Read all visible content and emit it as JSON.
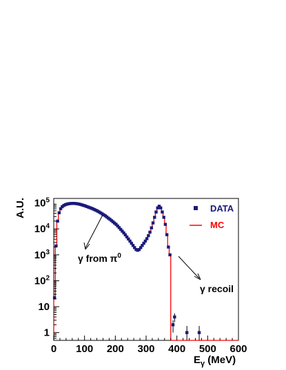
{
  "chart_data": {
    "type": "line",
    "xlabel_base": "E",
    "xlabel_sub": "γ",
    "xlabel_unit": " (MeV)",
    "ylabel": "A.U.",
    "xlim": [
      0,
      600
    ],
    "ylim": [
      0.5,
      150000
    ],
    "y_scale": "log",
    "x_ticks": [
      "0",
      "100",
      "200",
      "300",
      "400",
      "500",
      "600"
    ],
    "y_ticks": [
      {
        "base": "1",
        "exp": ""
      },
      {
        "base": "10",
        "exp": ""
      },
      {
        "base": "10",
        "exp": "2"
      },
      {
        "base": "10",
        "exp": "3"
      },
      {
        "base": "10",
        "exp": "4"
      },
      {
        "base": "10",
        "exp": "5"
      }
    ],
    "legend": {
      "position": "top-right",
      "items": [
        {
          "label": "DATA",
          "color": "#1a1a7a",
          "marker": "square"
        },
        {
          "label": "MC",
          "color": "#ff0000",
          "marker": "line"
        }
      ]
    },
    "annotations": [
      {
        "text_prefix": "γ from π",
        "sup": "0"
      },
      {
        "text": "γ recoil"
      }
    ],
    "series": [
      {
        "name": "DATA",
        "color": "#1a1a7a",
        "x": [
          2.5,
          7.5,
          12.5,
          17.5,
          22.5,
          27.5,
          32.5,
          37.5,
          42.5,
          47.5,
          52.5,
          57.5,
          62.5,
          67.5,
          72.5,
          77.5,
          82.5,
          87.5,
          92.5,
          97.5,
          102.5,
          107.5,
          112.5,
          117.5,
          122.5,
          127.5,
          132.5,
          137.5,
          142.5,
          147.5,
          152.5,
          157.5,
          162.5,
          167.5,
          172.5,
          177.5,
          182.5,
          187.5,
          192.5,
          197.5,
          202.5,
          207.5,
          212.5,
          217.5,
          222.5,
          227.5,
          232.5,
          237.5,
          242.5,
          247.5,
          252.5,
          257.5,
          262.5,
          267.5,
          272.5,
          277.5,
          282.5,
          287.5,
          292.5,
          297.5,
          302.5,
          307.5,
          312.5,
          317.5,
          322.5,
          327.5,
          332.5,
          337.5,
          342.5,
          347.5,
          352.5,
          357.5,
          362.5,
          367.5,
          372.5,
          377.5,
          382.5,
          387.5,
          392.5,
          397.5,
          402.5,
          407.5,
          432.5,
          472.5
        ],
        "y": [
          22,
          2200,
          20000,
          42000,
          60000,
          72000,
          80000,
          86000,
          90000,
          93000,
          95000,
          96000,
          96500,
          96000,
          95000,
          93000,
          90500,
          87500,
          84000,
          80500,
          77000,
          73000,
          69500,
          66000,
          62500,
          59000,
          55500,
          52000,
          48500,
          45000,
          41500,
          38000,
          35000,
          32000,
          29000,
          26000,
          23500,
          21000,
          18800,
          16800,
          15000,
          13000,
          11200,
          9600,
          8200,
          7000,
          5900,
          4900,
          4100,
          3400,
          2800,
          2300,
          1900,
          1600,
          1500,
          1600,
          1900,
          2300,
          2800,
          3400,
          4200,
          5500,
          7500,
          11000,
          17000,
          28000,
          45000,
          65000,
          75000,
          65000,
          45000,
          28000,
          15000,
          6000,
          2000,
          1000,
          0.5,
          2,
          4,
          0.5,
          0.5,
          0.5,
          1,
          1
        ],
        "err": [
          3,
          50,
          150,
          200,
          250,
          270,
          280,
          290,
          300,
          300,
          300,
          300,
          300,
          300,
          300,
          300,
          300,
          290,
          290,
          280,
          270,
          270,
          260,
          250,
          250,
          240,
          230,
          220,
          210,
          210,
          200,
          190,
          180,
          170,
          170,
          160,
          150,
          140,
          130,
          130,
          120,
          110,
          100,
          95,
          90,
          80,
          75,
          70,
          64,
          58,
          53,
          48,
          44,
          40,
          39,
          40,
          44,
          48,
          53,
          58,
          65,
          74,
          86,
          105,
          130,
          167,
          212,
          255,
          274,
          255,
          212,
          167,
          122,
          77,
          45,
          32,
          0,
          1,
          1.5,
          0,
          0,
          0,
          0.8,
          0.8
        ],
        "marker_indices": [
          0,
          1,
          2,
          3,
          4,
          5,
          6,
          7,
          8,
          9,
          10,
          11,
          12,
          13,
          14,
          15,
          16,
          17,
          18,
          19,
          20,
          21,
          22,
          23,
          24,
          25,
          26,
          27,
          28,
          29,
          30,
          31,
          32,
          33,
          34,
          35,
          36,
          37,
          38,
          39,
          40,
          41,
          42,
          43,
          44,
          45,
          46,
          47,
          48,
          49,
          50,
          51,
          52,
          53,
          54,
          55,
          56,
          57,
          58,
          59,
          60,
          61,
          62,
          63,
          64,
          65,
          66,
          67,
          68,
          69,
          70,
          71,
          72,
          73,
          74,
          75,
          77,
          78,
          82,
          83
        ]
      },
      {
        "name": "MC",
        "color": "#ff0000",
        "x": [
          0,
          5,
          10,
          15,
          20,
          25,
          30,
          35,
          40,
          45,
          50,
          55,
          60,
          65,
          70,
          75,
          80,
          85,
          90,
          95,
          100,
          105,
          110,
          115,
          120,
          125,
          130,
          135,
          140,
          145,
          150,
          155,
          160,
          165,
          170,
          175,
          180,
          185,
          190,
          195,
          200,
          205,
          210,
          215,
          220,
          225,
          230,
          235,
          240,
          245,
          250,
          255,
          260,
          265,
          270,
          275,
          280,
          285,
          290,
          295,
          300,
          305,
          310,
          315,
          320,
          325,
          330,
          335,
          340,
          345,
          350,
          355,
          360,
          365,
          370,
          375,
          380,
          385,
          390,
          395,
          400,
          405,
          410,
          415,
          420,
          425,
          430,
          435,
          440,
          600
        ],
        "y": [
          22,
          2200,
          20000,
          42000,
          60000,
          72000,
          80000,
          86000,
          90000,
          93000,
          95000,
          96000,
          96500,
          96000,
          95000,
          93000,
          90500,
          87500,
          84000,
          80500,
          77000,
          73000,
          69500,
          66000,
          62500,
          59000,
          55500,
          52000,
          48500,
          45000,
          41500,
          38000,
          35000,
          32000,
          29000,
          26000,
          23500,
          21000,
          18800,
          16800,
          15000,
          13000,
          11200,
          9600,
          8200,
          7000,
          5900,
          4900,
          4100,
          3400,
          2800,
          2300,
          1900,
          1600,
          1500,
          1600,
          1900,
          2300,
          2800,
          3400,
          4200,
          5500,
          7500,
          11000,
          17000,
          28000,
          45000,
          65000,
          75000,
          65000,
          45000,
          28000,
          15000,
          6000,
          2000,
          1000,
          0.5,
          0.5,
          0.5,
          0.5,
          0.5,
          0.5,
          0.5,
          0.5,
          0.5,
          0.5,
          0.5,
          0.5,
          0.5,
          0.5
        ]
      }
    ]
  }
}
